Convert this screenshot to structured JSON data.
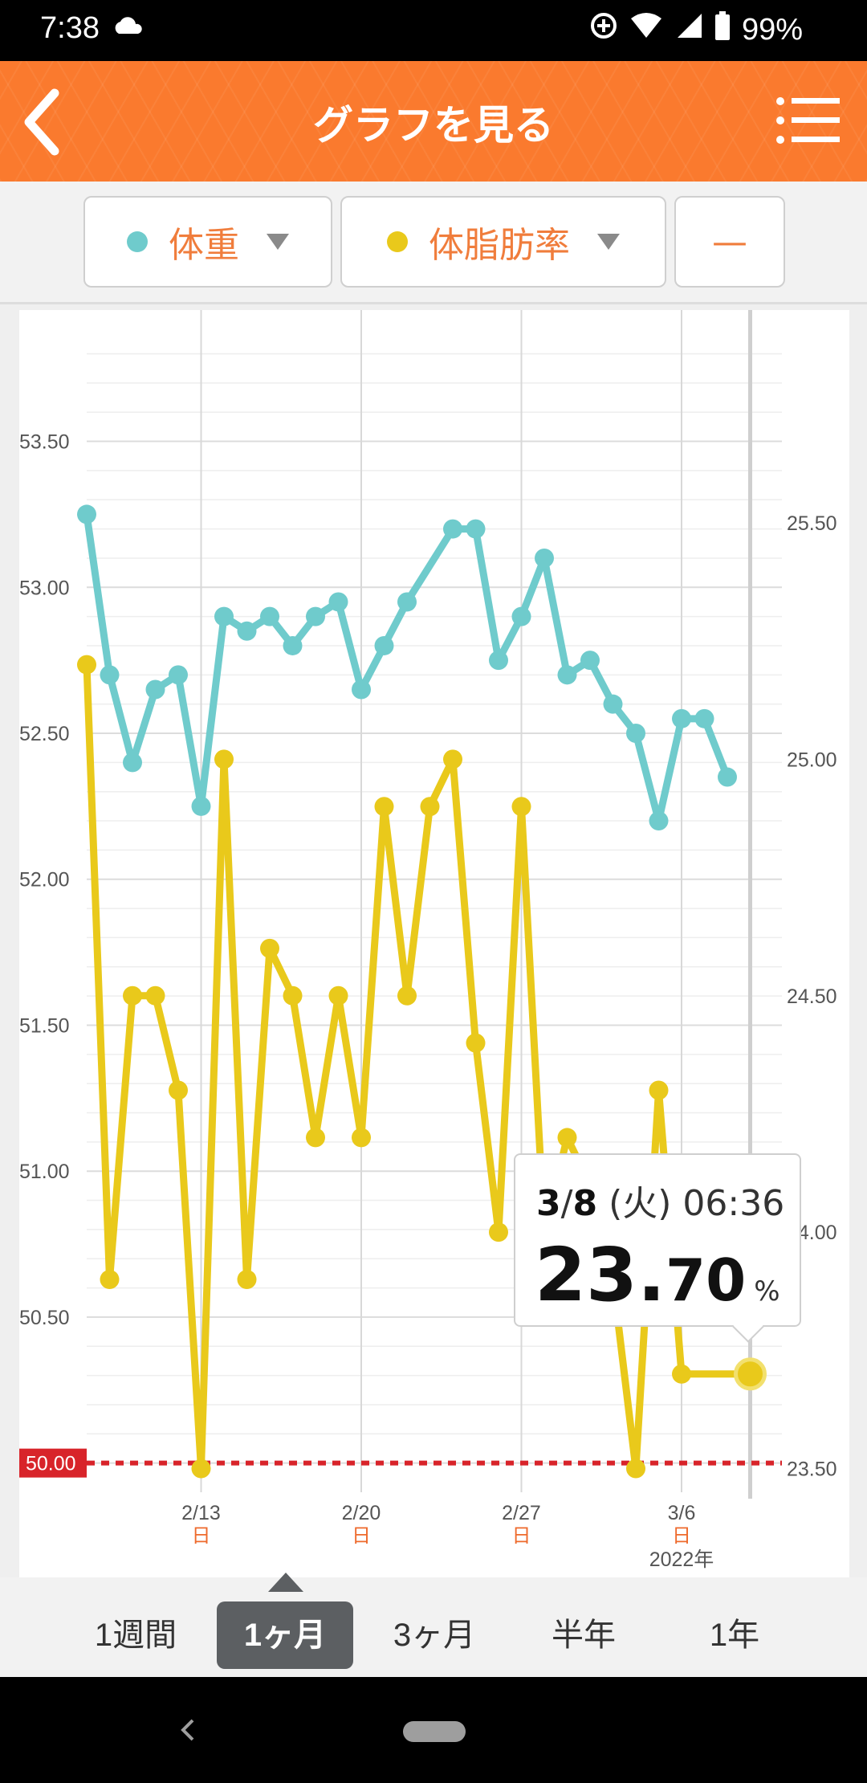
{
  "status_bar": {
    "time": "7:38",
    "battery": "99%",
    "icons": [
      "cloud-icon",
      "data-saver-icon",
      "wifi-icon",
      "signal-icon",
      "battery-icon"
    ]
  },
  "header": {
    "title": "グラフを見る",
    "back_icon": "chevron-left-icon",
    "menu_icon": "list-menu-icon"
  },
  "selectors": {
    "primary": {
      "label": "体重",
      "dot_color": "#6fcbcc"
    },
    "secondary": {
      "label": "体脂肪率",
      "dot_color": "#e9c91b"
    },
    "third": {
      "label": "—"
    }
  },
  "tooltip": {
    "date_md_month": "3",
    "date_md_sep": "/",
    "date_md_day": "8",
    "date_rest": "(火) 06:36",
    "value_int": "23.",
    "value_dec": "70",
    "unit": "%"
  },
  "chart_data": {
    "type": "line",
    "x_tick_labels": [
      "2/13",
      "2/20",
      "2/27",
      "3/6"
    ],
    "x_day_labels": [
      "日",
      "日",
      "日",
      "日"
    ],
    "year_label": "2022年",
    "y_left": {
      "ticks": [
        "53.50",
        "53.00",
        "52.50",
        "52.00",
        "51.50",
        "51.00",
        "50.50",
        "50.00"
      ],
      "ylim": [
        49.9,
        53.95
      ]
    },
    "y_right": {
      "ticks": [
        "25.50",
        "25.00",
        "24.50",
        "24.00",
        "23.50"
      ],
      "ylim": [
        23.45,
        25.95
      ]
    },
    "target_line": {
      "value": 50.0,
      "label": "50.00",
      "color": "#d8242a"
    },
    "x_start_day": 38,
    "x_end_day": 67,
    "series": [
      {
        "name": "体重",
        "axis": "left",
        "color": "#6fcbcc",
        "x": [
          38,
          39,
          40,
          41,
          42,
          43,
          44,
          45,
          46,
          47,
          48,
          49,
          50,
          51,
          52,
          54,
          55,
          56,
          57,
          58,
          59,
          60,
          61,
          62,
          63,
          64,
          65,
          66,
          67
        ],
        "values": [
          53.25,
          52.7,
          52.4,
          52.65,
          52.7,
          52.25,
          52.9,
          52.85,
          52.9,
          52.8,
          52.9,
          52.95,
          52.65,
          52.8,
          52.95,
          53.2,
          53.2,
          52.75,
          52.9,
          53.1,
          52.7,
          52.75,
          52.6,
          52.5,
          52.2,
          52.55,
          52.55,
          52.35,
          null
        ]
      },
      {
        "name": "体脂肪率",
        "axis": "right",
        "color": "#e9c91b",
        "x": [
          38,
          39,
          40,
          41,
          42,
          43,
          44,
          45,
          46,
          47,
          48,
          49,
          50,
          51,
          52,
          53,
          54,
          55,
          56,
          57,
          58,
          59,
          60,
          61,
          62,
          63,
          64,
          65,
          66
        ],
        "values": [
          25.2,
          23.9,
          24.5,
          24.5,
          24.3,
          23.5,
          25.0,
          23.9,
          24.6,
          24.5,
          24.2,
          24.5,
          24.2,
          24.9,
          24.5,
          24.9,
          25.0,
          24.4,
          24.0,
          24.9,
          24.0,
          24.2,
          24.1,
          23.9,
          23.5,
          24.3,
          23.7,
          null,
          null
        ]
      }
    ],
    "highlight": {
      "series": "体脂肪率",
      "x": 67,
      "value": 23.7
    }
  },
  "range_tabs": {
    "items": [
      "1週間",
      "1ヶ月",
      "3ヶ月",
      "半年",
      "1年"
    ],
    "active": "1ヶ月"
  },
  "nav": {
    "back_icon": "nav-back-icon",
    "home_icon": "nav-home-pill"
  }
}
